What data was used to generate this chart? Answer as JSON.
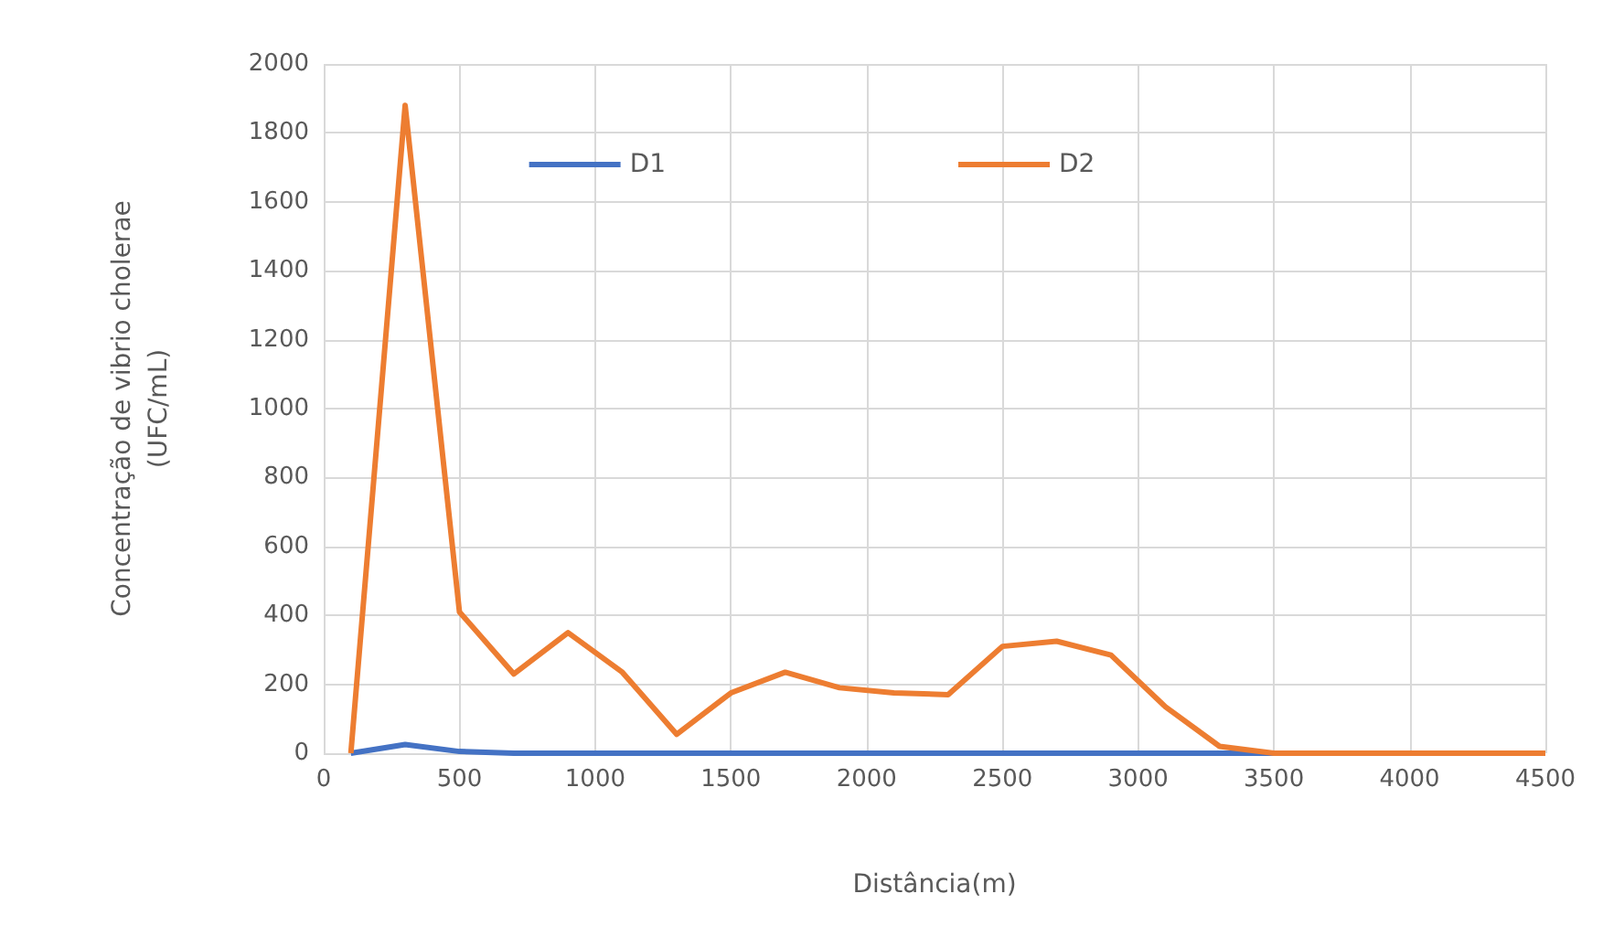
{
  "chart_data": {
    "type": "line",
    "xlabel": "Distância(m)",
    "ylabel": "Concentração de vibrio cholerae\n(UFC/mL)",
    "x": [
      100,
      300,
      500,
      700,
      900,
      1100,
      1300,
      1500,
      1700,
      1900,
      2100,
      2300,
      2500,
      2700,
      2900,
      3100,
      3300,
      3500,
      3700,
      3900,
      4100,
      4300,
      4500
    ],
    "series": [
      {
        "name": "D1",
        "color": "#4472c4",
        "values": [
          0,
          25,
          5,
          0,
          0,
          0,
          0,
          0,
          0,
          0,
          0,
          0,
          0,
          0,
          0,
          0,
          0,
          0,
          null,
          null,
          null,
          null,
          null
        ]
      },
      {
        "name": "D2",
        "color": "#ed7d31",
        "values": [
          0,
          1880,
          410,
          230,
          350,
          235,
          55,
          175,
          235,
          190,
          175,
          170,
          310,
          325,
          285,
          135,
          20,
          0,
          0,
          0,
          0,
          0,
          0
        ]
      }
    ],
    "xlim": [
      0,
      4500
    ],
    "xticks": [
      0,
      500,
      1000,
      1500,
      2000,
      2500,
      3000,
      3500,
      4000,
      4500
    ],
    "ylim": [
      0,
      2000
    ],
    "yticks": [
      0,
      200,
      400,
      600,
      800,
      1000,
      1200,
      1400,
      1600,
      1800,
      2000
    ],
    "grid": true,
    "legend": "top",
    "marker": "none",
    "line_style": "solid"
  }
}
